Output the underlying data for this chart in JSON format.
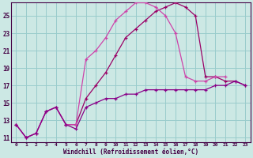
{
  "xlabel": "Windchill (Refroidissement éolien,°C)",
  "bg_color": "#cce8e4",
  "grid_color": "#99cccc",
  "line_color1": "#990066",
  "line_color2": "#cc44aa",
  "line_color3": "#880088",
  "xtick_labels": [
    "0",
    "1",
    "2",
    "3",
    "4",
    "5",
    "6",
    "7",
    "8",
    "9",
    "10",
    "11",
    "12",
    "13",
    "14",
    "15",
    "16",
    "17",
    "18",
    "19",
    "20",
    "21",
    "22",
    "23"
  ],
  "ytick_labels": [
    "11",
    "13",
    "15",
    "17",
    "19",
    "21",
    "23",
    "25"
  ],
  "xlim": [
    -0.5,
    23.5
  ],
  "ylim": [
    10.5,
    26.5
  ],
  "series1_x": [
    0,
    1,
    2,
    3,
    4,
    5,
    6,
    7,
    8,
    9,
    10,
    11,
    12,
    13,
    14,
    15,
    16,
    17,
    18,
    19,
    20,
    21,
    22,
    23
  ],
  "series1_y": [
    12.5,
    11.0,
    11.5,
    14.0,
    14.5,
    12.5,
    12.5,
    15.5,
    17.0,
    18.5,
    20.5,
    22.5,
    23.5,
    24.5,
    25.5,
    26.0,
    26.5,
    26.0,
    25.0,
    18.0,
    18.0,
    17.5,
    17.5,
    17.0
  ],
  "series2_x": [
    0,
    1,
    2,
    3,
    4,
    5,
    6,
    7,
    8,
    9,
    10,
    11,
    12,
    13,
    14,
    15,
    16,
    17,
    18,
    19,
    20,
    21
  ],
  "series2_y": [
    12.5,
    11.0,
    11.5,
    14.0,
    14.5,
    12.5,
    12.5,
    20.0,
    21.0,
    22.5,
    24.5,
    25.5,
    26.5,
    26.5,
    26.0,
    25.0,
    23.0,
    18.0,
    17.5,
    17.5,
    18.0,
    18.0
  ],
  "series3_x": [
    0,
    1,
    2,
    3,
    4,
    5,
    6,
    7,
    8,
    9,
    10,
    11,
    12,
    13,
    14,
    15,
    16,
    17,
    18,
    19,
    20,
    21,
    22,
    23
  ],
  "series3_y": [
    12.5,
    11.0,
    11.5,
    14.0,
    14.5,
    12.5,
    12.0,
    14.5,
    15.0,
    15.5,
    15.5,
    16.0,
    16.0,
    16.5,
    16.5,
    16.5,
    16.5,
    16.5,
    16.5,
    16.5,
    17.0,
    17.0,
    17.5,
    17.0
  ]
}
